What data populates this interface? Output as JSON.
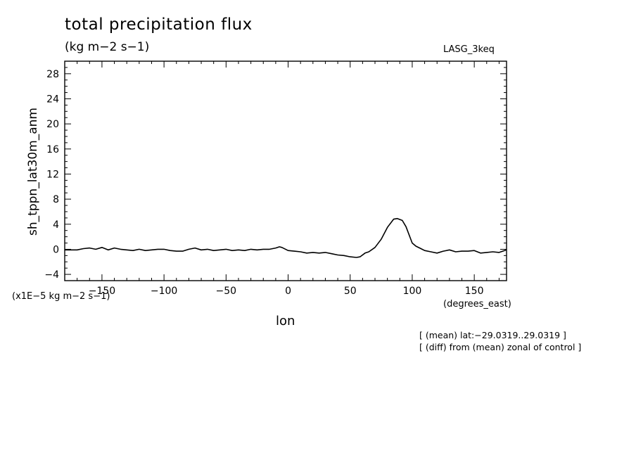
{
  "header": {
    "title": "total precipitation flux",
    "units": "(kg m−2 s−1)",
    "dataset": "LASG_3keq"
  },
  "axes": {
    "ylabel": "sh_tppn_lat30m_anm",
    "yunits": "(x1E−5 kg m−2 s−1)",
    "xlabel": "lon",
    "xunits": "(degrees_east)"
  },
  "notes": {
    "line1": "[ (mean) lat:−29.0319..29.0319 ]",
    "line2": "[ (diff) from (mean) zonal of control ]"
  },
  "chart_data": {
    "type": "line",
    "title": "total precipitation flux",
    "xlabel": "lon",
    "ylabel": "sh_tppn_lat30m_anm",
    "xlim": [
      -180,
      176
    ],
    "ylim": [
      -5,
      30
    ],
    "xticks": [
      -150,
      -100,
      -50,
      0,
      50,
      100,
      150
    ],
    "xtick_labels": [
      "−150",
      "−100",
      "−50",
      "0",
      "50",
      "100",
      "150"
    ],
    "yticks": [
      -4,
      0,
      4,
      8,
      12,
      16,
      20,
      24,
      28
    ],
    "ytick_labels": [
      "−4",
      "0",
      "4",
      "8",
      "12",
      "16",
      "20",
      "24",
      "28"
    ],
    "grid": false,
    "series": [
      {
        "x": [
          -180,
          -170,
          -165,
          -160,
          -155,
          -150,
          -145,
          -140,
          -135,
          -130,
          -125,
          -120,
          -115,
          -110,
          -105,
          -100,
          -95,
          -90,
          -85,
          -80,
          -75,
          -70,
          -65,
          -60,
          -55,
          -50,
          -45,
          -40,
          -35,
          -30,
          -25,
          -20,
          -15,
          -10,
          -7,
          -5,
          0,
          5,
          10,
          15,
          20,
          25,
          30,
          35,
          40,
          45,
          50,
          55,
          58,
          62,
          65,
          70,
          75,
          80,
          85,
          88,
          92,
          95,
          100,
          103,
          107,
          110,
          115,
          120,
          125,
          130,
          135,
          140,
          145,
          150,
          155,
          160,
          165,
          170,
          176
        ],
        "y": [
          -0.1,
          -0.1,
          0.1,
          0.2,
          0.0,
          0.3,
          -0.1,
          0.2,
          0.0,
          -0.1,
          -0.2,
          0.0,
          -0.2,
          -0.1,
          0.0,
          0.0,
          -0.2,
          -0.3,
          -0.3,
          0.0,
          0.2,
          -0.1,
          0.0,
          -0.2,
          -0.1,
          0.0,
          -0.2,
          -0.1,
          -0.2,
          0.0,
          -0.1,
          0.0,
          0.0,
          0.2,
          0.4,
          0.3,
          -0.2,
          -0.3,
          -0.4,
          -0.6,
          -0.5,
          -0.6,
          -0.5,
          -0.7,
          -0.9,
          -1.0,
          -1.2,
          -1.3,
          -1.2,
          -0.6,
          -0.4,
          0.3,
          1.6,
          3.5,
          4.8,
          4.9,
          4.6,
          3.6,
          1.0,
          0.5,
          0.1,
          -0.2,
          -0.4,
          -0.6,
          -0.3,
          -0.1,
          -0.4,
          -0.3,
          -0.3,
          -0.2,
          -0.6,
          -0.5,
          -0.4,
          -0.5,
          -0.1
        ]
      }
    ]
  }
}
